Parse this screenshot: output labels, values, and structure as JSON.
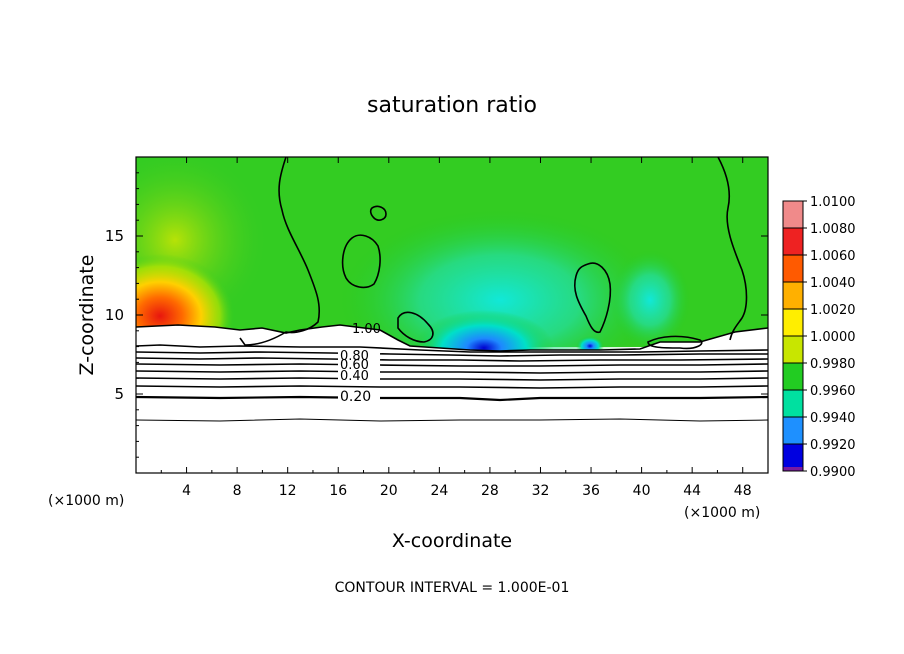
{
  "chart_data": {
    "type": "heatmap",
    "title": "saturation ratio",
    "xlabel": "X-coordinate",
    "ylabel": "Z-coordinate",
    "x_units_left": "(×1000 m)",
    "x_units_right": "(×1000 m)",
    "footer": "CONTOUR INTERVAL = 1.000E-01",
    "xlim": [
      0,
      50
    ],
    "ylim": [
      0,
      20
    ],
    "x_ticks": [
      4,
      8,
      12,
      16,
      20,
      24,
      28,
      32,
      36,
      40,
      44,
      48
    ],
    "y_ticks": [
      5,
      10,
      15
    ],
    "colorbar": {
      "levels": [
        "1.0100",
        "1.0080",
        "1.0060",
        "1.0040",
        "1.0020",
        "1.0000",
        "0.9980",
        "0.9960",
        "0.9940",
        "0.9920",
        "0.9900"
      ],
      "colors": [
        "#f08a8a",
        "#ee2222",
        "#ff5a00",
        "#ffb000",
        "#ffee00",
        "#c8e600",
        "#22cc22",
        "#00e0a0",
        "#1e90ff",
        "#0000e0",
        "#7a1aa0"
      ]
    },
    "contour_labels": [
      "1.00",
      "0.80",
      "0.60",
      "0.40",
      "0.20"
    ],
    "contour_levels": [
      0.1,
      0.2,
      0.3,
      0.4,
      0.5,
      0.6,
      0.7,
      0.8,
      0.9,
      1.0
    ],
    "background_value": 1.0,
    "field_features": [
      {
        "kind": "maximum",
        "x": 2,
        "z": 10.5,
        "value": 1.007
      },
      {
        "kind": "minimum",
        "x": 28,
        "z": 7.9,
        "value": 0.993
      },
      {
        "kind": "minimum",
        "x": 40,
        "z": 9.5,
        "value": 0.997
      }
    ]
  }
}
